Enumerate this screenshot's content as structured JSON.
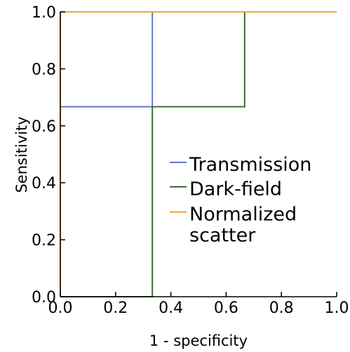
{
  "chart_data": {
    "type": "line",
    "title": "",
    "xlabel": "1 - specificity",
    "ylabel": "Sensitivity",
    "xlim": [
      0,
      1
    ],
    "ylim": [
      0,
      1
    ],
    "x_ticks": [
      "0.0",
      "0.2",
      "0.4",
      "0.6",
      "0.8",
      "1.0"
    ],
    "y_ticks": [
      "0.0",
      "0.2",
      "0.4",
      "0.6",
      "0.8",
      "1.0"
    ],
    "grid": false,
    "legend_position": "center-right",
    "series": [
      {
        "name": "Transmission",
        "color": "#6674c6",
        "x": [
          0.0,
          0.0,
          0.333,
          0.333,
          1.0
        ],
        "y": [
          0.0,
          0.667,
          0.667,
          1.0,
          1.0
        ]
      },
      {
        "name": "Dark-field",
        "color": "#3a6e36",
        "x": [
          0.0,
          0.333,
          0.333,
          0.667,
          0.667,
          1.0
        ],
        "y": [
          0.0,
          0.0,
          0.667,
          0.667,
          1.0,
          1.0
        ]
      },
      {
        "name": "Normalized scatter",
        "name_lines": [
          "Normalized",
          "scatter"
        ],
        "color": "#f0a830",
        "x": [
          0.0,
          0.0,
          1.0
        ],
        "y": [
          0.0,
          1.0,
          1.0
        ]
      }
    ]
  }
}
